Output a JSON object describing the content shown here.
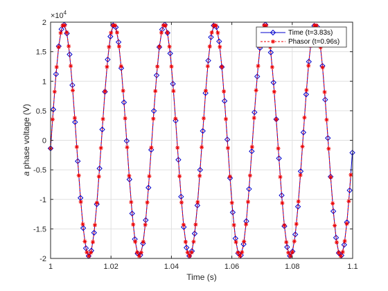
{
  "chart_data": {
    "type": "line",
    "title": "",
    "xlabel": "Time (s)",
    "ylabel": "a phase voltage (V)",
    "ylabel_italic_part": "a",
    "ylabel_rest": " phase voltage (V)",
    "exponent_base": "×10",
    "exponent_power": "4",
    "xlim": [
      1,
      1.1
    ],
    "ylim": [
      -20000,
      20000
    ],
    "xticks": [
      "1",
      "1.02",
      "1.04",
      "1.06",
      "1.08",
      "1.1"
    ],
    "yticks": [
      "-2",
      "-1.5",
      "-1",
      "-0.5",
      "0",
      "0.5",
      "1",
      "1.5",
      "2"
    ],
    "xtick_values": [
      1,
      1.02,
      1.04,
      1.06,
      1.08,
      1.1
    ],
    "ytick_values": [
      -20000,
      -15000,
      -10000,
      -5000,
      0,
      5000,
      10000,
      15000,
      20000
    ],
    "grid": true,
    "legend_position": "top-right",
    "signal": {
      "amplitude": 19600,
      "frequency_hz": 60,
      "phase_deg": -4
    },
    "series": [
      {
        "name": "Time (t=3.83s)",
        "color": "#0000cc",
        "marker": "diamond",
        "sample_step": 0.0009,
        "x_start": 1.0
      },
      {
        "name": "Phasor (t=0.96s)",
        "color": "#ee0000",
        "marker": "star",
        "sample_step": 0.000667,
        "x_start": 1.0
      }
    ]
  }
}
